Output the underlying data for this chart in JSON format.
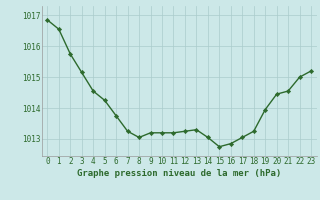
{
  "x": [
    0,
    1,
    2,
    3,
    4,
    5,
    6,
    7,
    8,
    9,
    10,
    11,
    12,
    13,
    14,
    15,
    16,
    17,
    18,
    19,
    20,
    21,
    22,
    23
  ],
  "y": [
    1016.85,
    1016.55,
    1015.75,
    1015.15,
    1014.55,
    1014.25,
    1013.75,
    1013.25,
    1013.05,
    1013.2,
    1013.2,
    1013.2,
    1013.25,
    1013.3,
    1013.05,
    1012.75,
    1012.85,
    1013.05,
    1013.25,
    1013.95,
    1014.45,
    1014.55,
    1015.0,
    1015.2
  ],
  "line_color": "#2d6a2d",
  "marker": "D",
  "marker_size": 2.2,
  "linewidth": 1.0,
  "background_color": "#cce8e8",
  "grid_color": "#aacccc",
  "xlabel": "Graphe pression niveau de la mer (hPa)",
  "xlabel_color": "#2d6a2d",
  "xlabel_fontsize": 6.5,
  "tick_color": "#2d6a2d",
  "tick_fontsize": 5.5,
  "ytick_labels": [
    "1013",
    "1014",
    "1015",
    "1016",
    "1017"
  ],
  "ytick_values": [
    1013,
    1014,
    1015,
    1016,
    1017
  ],
  "ylim": [
    1012.45,
    1017.3
  ],
  "xlim": [
    -0.5,
    23.5
  ]
}
